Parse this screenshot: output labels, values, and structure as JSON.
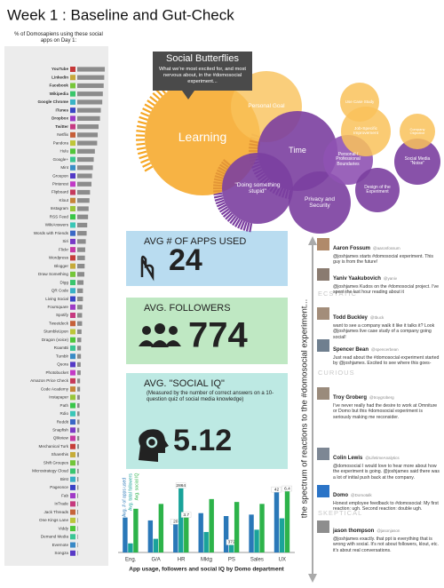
{
  "title": "Week 1 : Baseline and Gut-Check",
  "chart_data": [
    {
      "type": "hbar",
      "title": "% of Domosapiens using these social apps on Day 1:",
      "color": "#8c8c8c",
      "xlim": [
        0,
        100
      ],
      "categories": [
        "YouTube",
        "LinkedIn",
        "Facebook",
        "Wikipedia",
        "Google Chrome",
        "iTunes",
        "Dropbox",
        "Twitter",
        "Netflix",
        "Pandora",
        "Hulu",
        "Google+",
        "Mint",
        "Groupon",
        "Pinterest",
        "Flipboard",
        "Klout",
        "Instagram",
        "RSS Feed",
        "WikiAnswers",
        "Words with Friends",
        "Siri",
        "Flickr",
        "Wordpress",
        "Blogger",
        "Draw Something",
        "Digg",
        "QR Code",
        "Living Social",
        "Foursquare",
        "Spotify",
        "Tweetdeck",
        "StumbleUpon",
        "Dragon (voice)",
        "RoamBi",
        "Tumblr",
        "Quora",
        "Photobucket",
        "Amazon Price Check",
        "Code Academy",
        "Instapaper",
        "Path",
        "Rdio",
        "Reddit",
        "Snapfish",
        "Qlikview",
        "Mechanical Turk",
        "Sharethis",
        "Shift Groupes",
        "Microstrategy Cloud",
        "Birst",
        "Pageonce",
        "Fab",
        "InTrade",
        "Jack Threads",
        "One Kings Lane",
        "Viddy",
        "Demand Media",
        "Evernote",
        "Songza"
      ],
      "values": [
        97,
        95,
        93,
        90,
        88,
        83,
        80,
        75,
        72,
        70,
        62,
        58,
        55,
        52,
        50,
        45,
        43,
        40,
        38,
        35,
        33,
        30,
        28,
        27,
        26,
        25,
        22,
        20,
        20,
        18,
        17,
        17,
        15,
        14,
        13,
        13,
        12,
        12,
        10,
        10,
        9,
        8,
        8,
        8,
        7,
        7,
        6,
        6,
        5,
        5,
        4,
        4,
        3,
        3,
        3,
        2,
        2,
        2,
        2,
        2
      ]
    },
    {
      "type": "grouped-bar",
      "title": "App usage, followers and social IQ by Domo department",
      "categories": [
        "Eng.",
        "G/A",
        "HR",
        "Mktg",
        "PS",
        "Sales",
        "UX"
      ],
      "series": [
        {
          "name": "Avg. # of apps used",
          "color": "#2a78b8",
          "ylim": [
            0,
            50
          ],
          "values": [
            24,
            22,
            20,
            27,
            25,
            26,
            42
          ],
          "value_labels": [
            null,
            null,
            "20",
            null,
            null,
            null,
            "42"
          ]
        },
        {
          "name": "Avg. total followers",
          "color": "#1aa39a",
          "ylim": [
            0,
            3200
          ],
          "values": [
            400,
            600,
            2864,
            900,
            372,
            1000,
            1500
          ],
          "value_labels": [
            null,
            null,
            "2864",
            null,
            "372",
            null,
            null
          ]
        },
        {
          "name": "Avg. social IQ",
          "color": "#2db34a",
          "ylim": [
            0,
            7.5
          ],
          "values": [
            4.5,
            5.0,
            3.7,
            5.5,
            5.2,
            5.0,
            6.4
          ],
          "value_labels": [
            null,
            null,
            "3.7",
            null,
            null,
            null,
            "6.4"
          ]
        }
      ]
    }
  ],
  "callout": {
    "title": "Social Butterflies",
    "text": "What we're most excited for, and most nervous about, in the #domosocial experiment..."
  },
  "bubbles": [
    {
      "label": "Learning"
    },
    {
      "label": "Personal Goal"
    },
    {
      "label": "Time"
    },
    {
      "label": "\"Doing something stupid\""
    },
    {
      "label": "Privacy and Security"
    },
    {
      "label": "Personal / Professional Boundaries"
    },
    {
      "label": "Design of the Experiment"
    },
    {
      "label": "Social Media \"Noise\""
    },
    {
      "label": "Job-Specific Improvement"
    },
    {
      "label": "Use Case Study"
    },
    {
      "label": "Company Objective"
    }
  ],
  "stats": [
    {
      "label": "AVG # OF APPS USED",
      "value": 24
    },
    {
      "label": "AVG. FOLLOWERS",
      "value": 774
    },
    {
      "label": "AVG. \"SOCIAL IQ\"",
      "note": "(Measured by the number of correct answers on a 10-question quiz of social media knowledge)",
      "value": 5.12
    }
  ],
  "spectrum": {
    "title": "the spectrum of reactions to the #domosocial experiment...",
    "labels": [
      "ECSTATIC",
      "CURIOUS",
      "SKEPTICAL"
    ]
  },
  "tweets": [
    {
      "name": "Aaron Fossum",
      "handle": "@aaronfossum",
      "text": "@joshjames starts #domosocial experiment. This guy is from the future!"
    },
    {
      "name": "Yaniv Yaakubovich",
      "handle": "@yaniv",
      "text": "@joshjames Kudos on the #domosocial project. I've spent the last hour reading about it"
    },
    {
      "name": "Todd Buckley",
      "handle": "@tbuck",
      "text": "want to see a company walk it like it talks it? Look @joshjames live case study of a company going social!"
    },
    {
      "name": "Spencer Bean",
      "handle": "@spencerbean",
      "text": "Just read about the #domosocial experiment started by @joshjames. Excited to see where this goes-"
    },
    {
      "name": "Troy Groberg",
      "handle": "@troygroberg",
      "text": "I've never really had the desire to work at Omniture or Domo but this #domosocial experiment is seriously making me reconsider."
    },
    {
      "name": "Colin Lewis",
      "handle": "@LifetimeAnalytics",
      "text": "@domosocial I would love to hear more about how the experiment is going. @joshjames said there was a lot of initial push back at the company."
    },
    {
      "name": "Domo",
      "handle": "@Domotalk",
      "text": "Honest employee feedback to #domosocial: My first reaction: ugh. Second reaction: double ugh."
    },
    {
      "name": "jason thompson",
      "handle": "@jasonjason",
      "text": "@joshjames exactly. that ppt is everything that is wrong with social. It's not about followers, klout, etc. it's about real conversations."
    }
  ]
}
